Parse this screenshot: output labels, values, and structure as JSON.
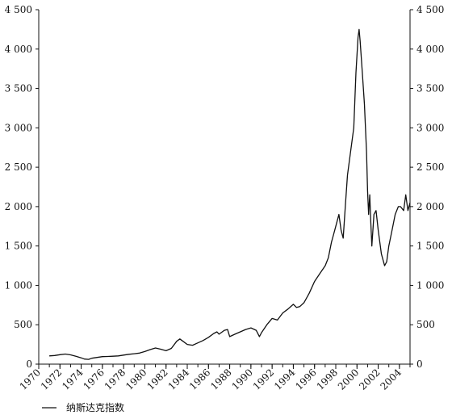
{
  "chart_data": {
    "type": "line",
    "title": "",
    "xlabel": "",
    "ylabel": "",
    "xlim": [
      1970,
      2005
    ],
    "ylim": [
      0,
      4500
    ],
    "x_ticks": [
      1970,
      1972,
      1974,
      1976,
      1978,
      1980,
      1982,
      1984,
      1986,
      1988,
      1990,
      1992,
      1994,
      1996,
      1998,
      2000,
      2002,
      2004
    ],
    "y_ticks": [
      {
        "value": 0,
        "label": "0"
      },
      {
        "value": 500,
        "label": "500"
      },
      {
        "value": 1000,
        "label": "1 000"
      },
      {
        "value": 1500,
        "label": "1 500"
      },
      {
        "value": 2000,
        "label": "2 000"
      },
      {
        "value": 2500,
        "label": "2 500"
      },
      {
        "value": 3000,
        "label": "3 000"
      },
      {
        "value": 3500,
        "label": "3 500"
      },
      {
        "value": 4000,
        "label": "4 000"
      },
      {
        "value": 4500,
        "label": "4 500"
      }
    ],
    "grid": false,
    "dual_y_axis": true,
    "legend_position": "bottom-left",
    "series": [
      {
        "name": "纳斯达克指数",
        "color": "#111111",
        "points": [
          [
            1971.0,
            105
          ],
          [
            1971.5,
            110
          ],
          [
            1972.0,
            120
          ],
          [
            1972.5,
            128
          ],
          [
            1973.0,
            118
          ],
          [
            1973.5,
            100
          ],
          [
            1974.0,
            80
          ],
          [
            1974.3,
            65
          ],
          [
            1974.7,
            60
          ],
          [
            1975.0,
            75
          ],
          [
            1975.5,
            85
          ],
          [
            1976.0,
            95
          ],
          [
            1976.5,
            97
          ],
          [
            1977.0,
            100
          ],
          [
            1977.5,
            105
          ],
          [
            1978.0,
            115
          ],
          [
            1978.5,
            125
          ],
          [
            1979.0,
            132
          ],
          [
            1979.5,
            140
          ],
          [
            1980.0,
            160
          ],
          [
            1980.5,
            185
          ],
          [
            1981.0,
            205
          ],
          [
            1981.5,
            190
          ],
          [
            1982.0,
            170
          ],
          [
            1982.5,
            200
          ],
          [
            1983.0,
            290
          ],
          [
            1983.3,
            320
          ],
          [
            1983.7,
            280
          ],
          [
            1984.0,
            250
          ],
          [
            1984.5,
            240
          ],
          [
            1985.0,
            270
          ],
          [
            1985.5,
            300
          ],
          [
            1986.0,
            340
          ],
          [
            1986.5,
            390
          ],
          [
            1986.8,
            410
          ],
          [
            1987.0,
            380
          ],
          [
            1987.5,
            430
          ],
          [
            1987.8,
            440
          ],
          [
            1988.0,
            350
          ],
          [
            1988.5,
            380
          ],
          [
            1989.0,
            410
          ],
          [
            1989.5,
            440
          ],
          [
            1990.0,
            460
          ],
          [
            1990.5,
            430
          ],
          [
            1990.8,
            350
          ],
          [
            1991.0,
            400
          ],
          [
            1991.5,
            500
          ],
          [
            1992.0,
            580
          ],
          [
            1992.5,
            560
          ],
          [
            1993.0,
            650
          ],
          [
            1993.5,
            700
          ],
          [
            1994.0,
            760
          ],
          [
            1994.3,
            720
          ],
          [
            1994.6,
            730
          ],
          [
            1995.0,
            780
          ],
          [
            1995.5,
            900
          ],
          [
            1996.0,
            1050
          ],
          [
            1996.5,
            1150
          ],
          [
            1997.0,
            1250
          ],
          [
            1997.3,
            1350
          ],
          [
            1997.6,
            1550
          ],
          [
            1997.8,
            1650
          ],
          [
            1998.0,
            1750
          ],
          [
            1998.3,
            1900
          ],
          [
            1998.5,
            1700
          ],
          [
            1998.7,
            1600
          ],
          [
            1998.9,
            2000
          ],
          [
            1999.1,
            2400
          ],
          [
            1999.4,
            2700
          ],
          [
            1999.7,
            3000
          ],
          [
            1999.9,
            3700
          ],
          [
            2000.1,
            4150
          ],
          [
            2000.2,
            4250
          ],
          [
            2000.3,
            4100
          ],
          [
            2000.5,
            3700
          ],
          [
            2000.7,
            3300
          ],
          [
            2000.9,
            2700
          ],
          [
            2001.0,
            2200
          ],
          [
            2001.1,
            1900
          ],
          [
            2001.2,
            2150
          ],
          [
            2001.3,
            1800
          ],
          [
            2001.4,
            1500
          ],
          [
            2001.6,
            1900
          ],
          [
            2001.8,
            1950
          ],
          [
            2002.0,
            1700
          ],
          [
            2002.3,
            1400
          ],
          [
            2002.6,
            1250
          ],
          [
            2002.8,
            1300
          ],
          [
            2003.0,
            1500
          ],
          [
            2003.3,
            1700
          ],
          [
            2003.6,
            1900
          ],
          [
            2003.9,
            2000
          ],
          [
            2004.1,
            2000
          ],
          [
            2004.4,
            1950
          ],
          [
            2004.6,
            2150
          ],
          [
            2004.8,
            1950
          ],
          [
            2005.0,
            2050
          ]
        ]
      }
    ]
  }
}
